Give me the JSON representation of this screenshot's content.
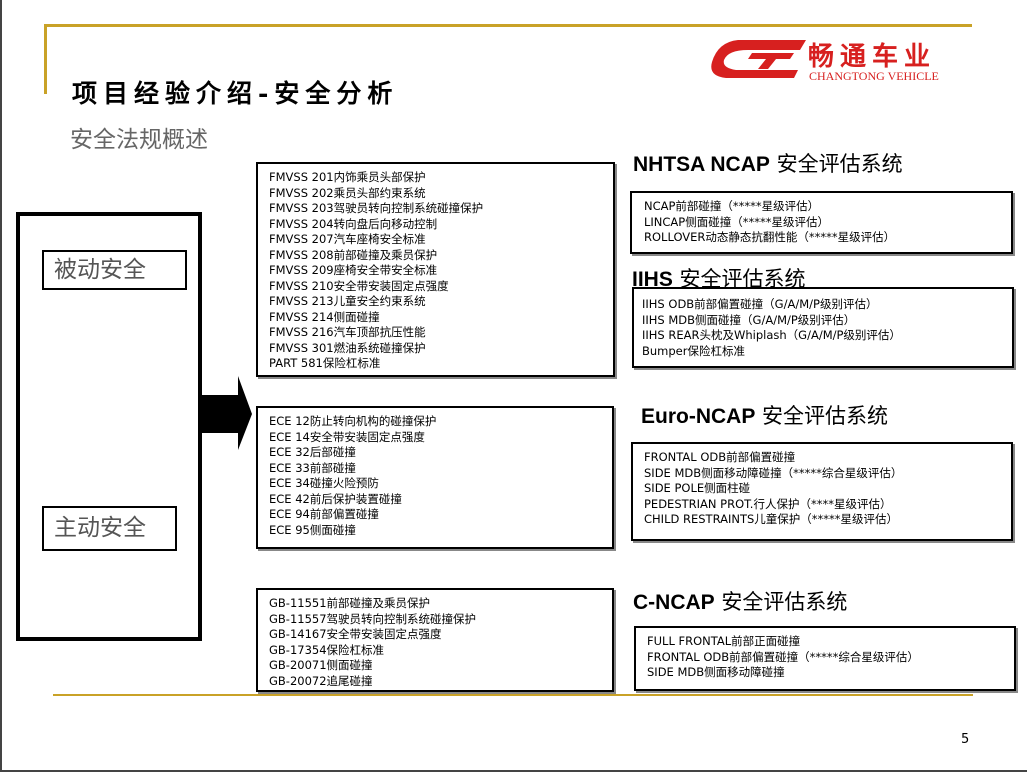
{
  "slide": {
    "title": "项目经验介绍-安全分析",
    "subtitle": "安全法规概述",
    "page_number": "5",
    "accent_color": "#c9a227"
  },
  "logo": {
    "cn": "畅通车业",
    "en": "CHANGTONG VEHICLE",
    "mark": "CT",
    "color": "#d7201f"
  },
  "left": {
    "passive": "被动安全",
    "active": "主动安全"
  },
  "regulations": {
    "fmvss": [
      "FMVSS 201内饰乘员头部保护",
      "FMVSS 202乘员头部约束系统",
      "FMVSS 203驾驶员转向控制系统碰撞保护",
      "FMVSS 204转向盘后向移动控制",
      "FMVSS 207汽车座椅安全标准",
      "FMVSS 208前部碰撞及乘员保护",
      "FMVSS 209座椅安全带安全标准",
      "FMVSS 210安全带安装固定点强度",
      "FMVSS 213儿童安全约束系统",
      "FMVSS 214侧面碰撞",
      "FMVSS 216汽车顶部抗压性能",
      "FMVSS 301燃油系统碰撞保护",
      "PART 581保险杠标准"
    ],
    "ece": [
      "ECE 12防止转向机构的碰撞保护",
      "ECE 14安全带安装固定点强度",
      "ECE 32后部碰撞",
      "ECE 33前部碰撞",
      "ECE 34碰撞火险预防",
      "ECE 42前后保护装置碰撞",
      "ECE 94前部偏置碰撞",
      "ECE 95侧面碰撞"
    ],
    "gb": [
      "GB-11551前部碰撞及乘员保护",
      "GB-11557驾驶员转向控制系统碰撞保护",
      "GB-14167安全带安装固定点强度",
      "GB-17354保险杠标准",
      "GB-20071侧面碰撞",
      "GB-20072追尾碰撞"
    ]
  },
  "systems": {
    "nhtsa": {
      "name": "NHTSA NCAP",
      "suffix": "安全评估系统",
      "items": [
        "NCAP前部碰撞（*****星级评估）",
        "LINCAP侧面碰撞（*****星级评估）",
        "ROLLOVER动态静态抗翻性能（*****星级评估）"
      ]
    },
    "iihs": {
      "name": "IIHS",
      "suffix": "安全评估系统",
      "items": [
        "IIHS ODB前部偏置碰撞（G/A/M/P级别评估）",
        "IIHS MDB侧面碰撞（G/A/M/P级别评估）",
        "IIHS REAR头枕及Whiplash（G/A/M/P级别评估）",
        "Bumper保险杠标准"
      ]
    },
    "euro": {
      "name": "Euro-NCAP",
      "suffix": "安全评估系统",
      "items": [
        "FRONTAL ODB前部偏置碰撞",
        "SIDE MDB侧面移动障碰撞（*****综合星级评估）",
        "SIDE POLE侧面柱碰",
        "PEDESTRIAN PROT.行人保护（****星级评估）",
        "CHILD RESTRAINTS儿童保护（*****星级评估）"
      ]
    },
    "cncap": {
      "name": "C-NCAP",
      "suffix": "安全评估系统",
      "items": [
        "FULL FRONTAL前部正面碰撞",
        "FRONTAL ODB前部偏置碰撞（*****综合星级评估）",
        "SIDE MDB侧面移动障碰撞"
      ]
    }
  }
}
